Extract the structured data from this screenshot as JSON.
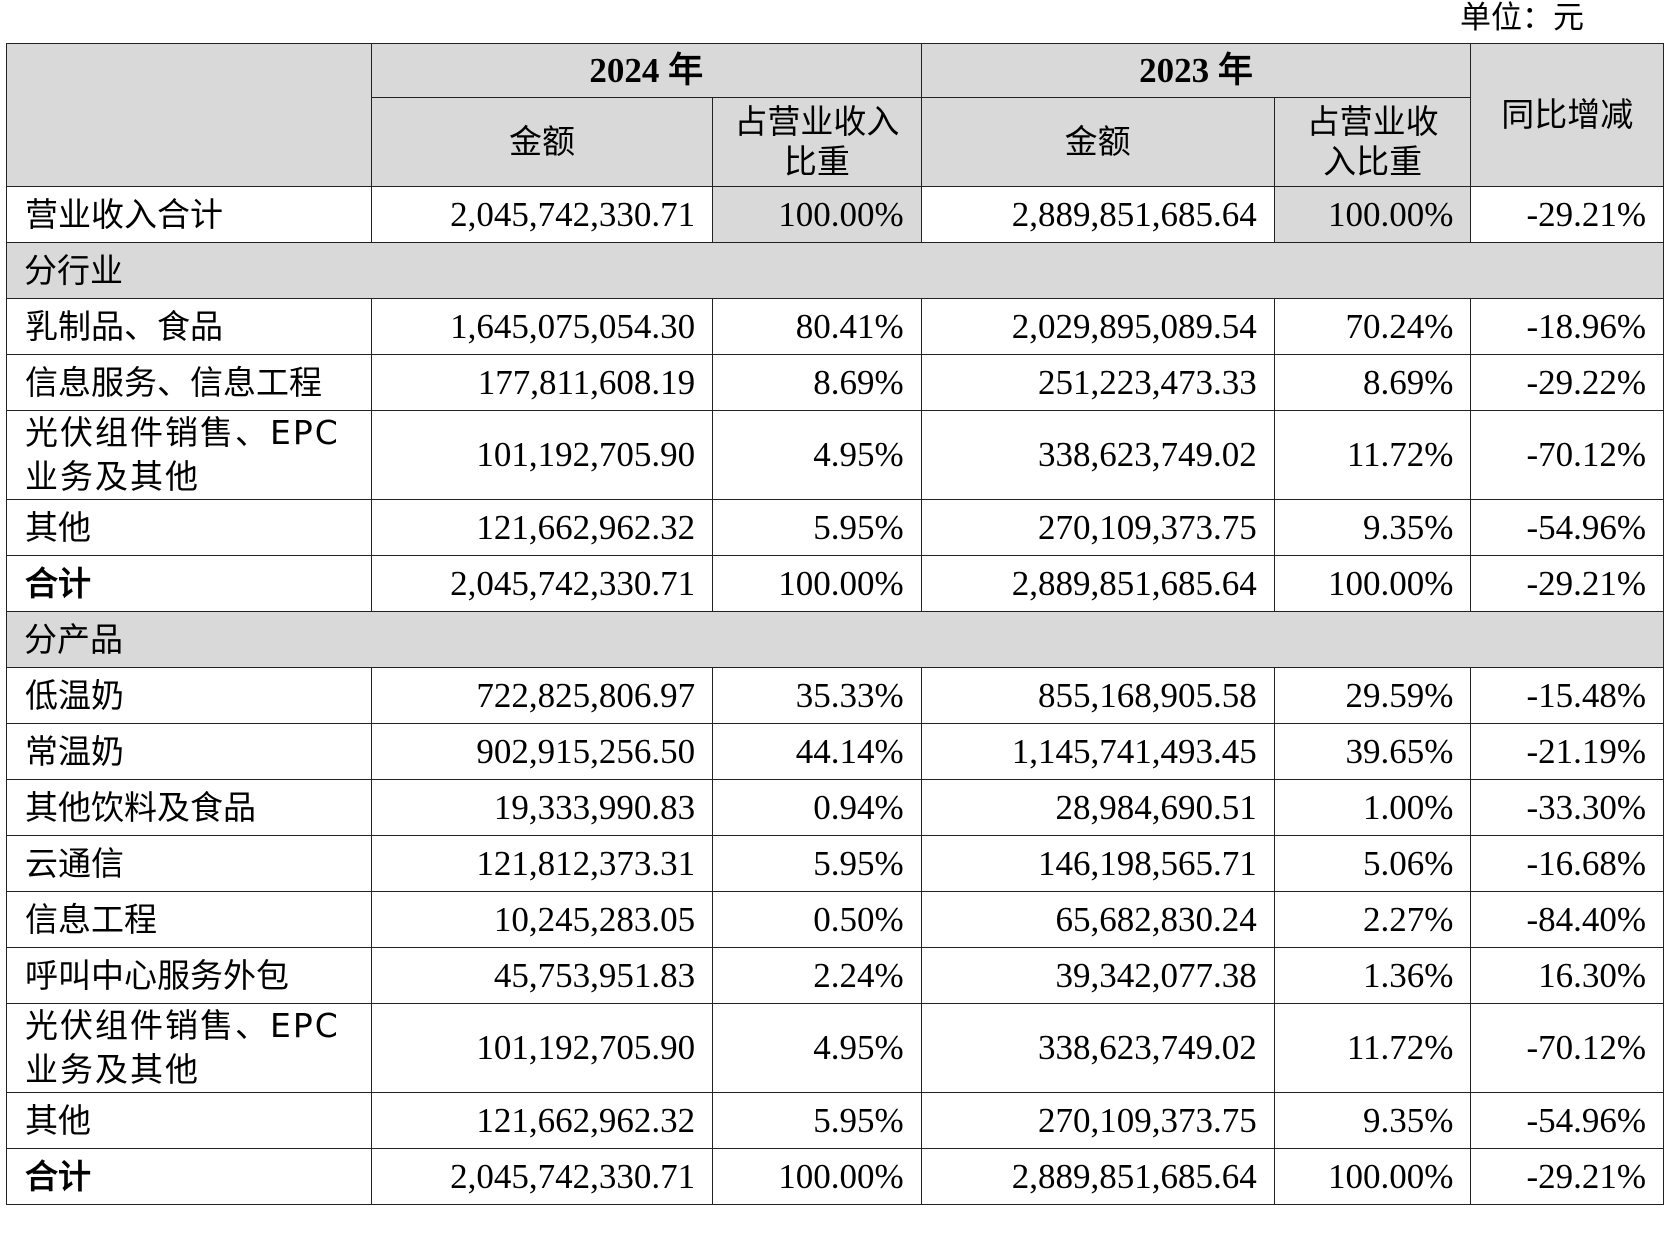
{
  "unit_label": "单位：元",
  "header": {
    "year_2024": "2024 年",
    "year_2023": "2023 年",
    "amount": "金额",
    "ratio": "占营业收入比重",
    "yoy": "同比增减"
  },
  "total_revenue": {
    "label": "营业收入合计",
    "amount_2024": "2,045,742,330.71",
    "ratio_2024": "100.00%",
    "amount_2023": "2,889,851,685.64",
    "ratio_2023": "100.00%",
    "yoy": "-29.21%"
  },
  "by_industry": {
    "title": "分行业",
    "rows": [
      {
        "label": "乳制品、食品",
        "amount_2024": "1,645,075,054.30",
        "ratio_2024": "80.41%",
        "amount_2023": "2,029,895,089.54",
        "ratio_2023": "70.24%",
        "yoy": "-18.96%"
      },
      {
        "label": "信息服务、信息工程",
        "amount_2024": "177,811,608.19",
        "ratio_2024": "8.69%",
        "amount_2023": "251,223,473.33",
        "ratio_2023": "8.69%",
        "yoy": "-29.22%"
      },
      {
        "label": "光伏组件销售、EPC业务及其他",
        "amount_2024": "101,192,705.90",
        "ratio_2024": "4.95%",
        "amount_2023": "338,623,749.02",
        "ratio_2023": "11.72%",
        "yoy": "-70.12%"
      },
      {
        "label": "其他",
        "amount_2024": "121,662,962.32",
        "ratio_2024": "5.95%",
        "amount_2023": "270,109,373.75",
        "ratio_2023": "9.35%",
        "yoy": "-54.96%"
      }
    ],
    "total": {
      "label": "合计",
      "amount_2024": "2,045,742,330.71",
      "ratio_2024": "100.00%",
      "amount_2023": "2,889,851,685.64",
      "ratio_2023": "100.00%",
      "yoy": "-29.21%"
    }
  },
  "by_product": {
    "title": "分产品",
    "rows": [
      {
        "label": "低温奶",
        "amount_2024": "722,825,806.97",
        "ratio_2024": "35.33%",
        "amount_2023": "855,168,905.58",
        "ratio_2023": "29.59%",
        "yoy": "-15.48%"
      },
      {
        "label": "常温奶",
        "amount_2024": "902,915,256.50",
        "ratio_2024": "44.14%",
        "amount_2023": "1,145,741,493.45",
        "ratio_2023": "39.65%",
        "yoy": "-21.19%"
      },
      {
        "label": "其他饮料及食品",
        "amount_2024": "19,333,990.83",
        "ratio_2024": "0.94%",
        "amount_2023": "28,984,690.51",
        "ratio_2023": "1.00%",
        "yoy": "-33.30%"
      },
      {
        "label": "云通信",
        "amount_2024": "121,812,373.31",
        "ratio_2024": "5.95%",
        "amount_2023": "146,198,565.71",
        "ratio_2023": "5.06%",
        "yoy": "-16.68%"
      },
      {
        "label": "信息工程",
        "amount_2024": "10,245,283.05",
        "ratio_2024": "0.50%",
        "amount_2023": "65,682,830.24",
        "ratio_2023": "2.27%",
        "yoy": "-84.40%"
      },
      {
        "label": "呼叫中心服务外包",
        "amount_2024": "45,753,951.83",
        "ratio_2024": "2.24%",
        "amount_2023": "39,342,077.38",
        "ratio_2023": "1.36%",
        "yoy": "16.30%"
      },
      {
        "label": "光伏组件销售、EPC业务及其他",
        "amount_2024": "101,192,705.90",
        "ratio_2024": "4.95%",
        "amount_2023": "338,623,749.02",
        "ratio_2023": "11.72%",
        "yoy": "-70.12%"
      },
      {
        "label": "其他",
        "amount_2024": "121,662,962.32",
        "ratio_2024": "5.95%",
        "amount_2023": "270,109,373.75",
        "ratio_2023": "9.35%",
        "yoy": "-54.96%"
      }
    ],
    "total": {
      "label": "合计",
      "amount_2024": "2,045,742,330.71",
      "ratio_2024": "100.00%",
      "amount_2023": "2,889,851,685.64",
      "ratio_2023": "100.00%",
      "yoy": "-29.21%"
    }
  }
}
